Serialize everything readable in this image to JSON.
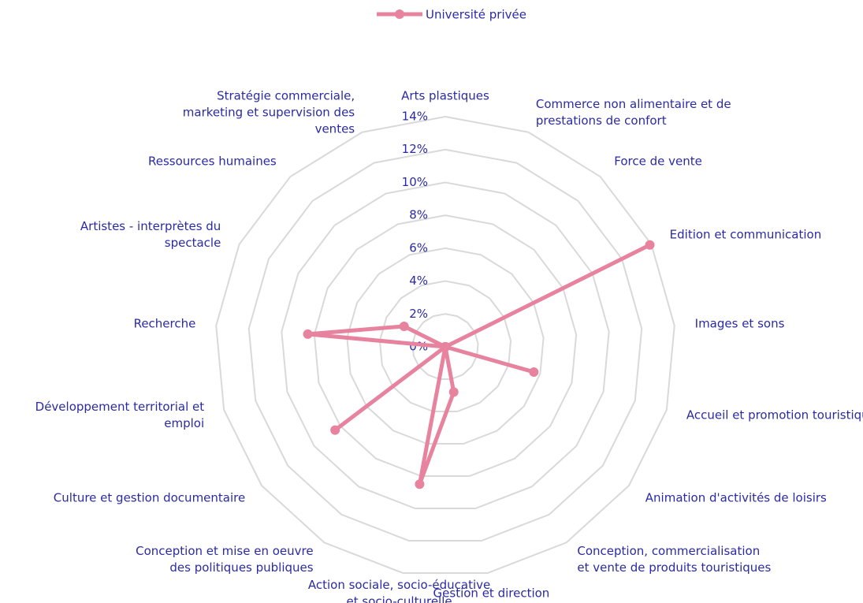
{
  "chart_data": {
    "type": "radar",
    "categories": [
      "Arts plastiques",
      "Commerce non alimentaire et de prestations de confort",
      "Force de vente",
      "Edition et communication",
      "Images et sons",
      "Accueil et promotion touristique",
      "Animation d'activités de loisirs",
      "Conception, commercialisation et vente de produits touristiques",
      "Gestion et direction",
      "Action sociale, socio-éducative et socio-culturelle",
      "Conception et mise en oeuvre des politiques publiques",
      "Culture et gestion documentaire",
      "Développement territorial et emploi",
      "Recherche",
      "Artistes - interprètes du spectacle",
      "Ressources humaines",
      "Stratégie commerciale, marketing et supervision des ventes"
    ],
    "series": [
      {
        "name": "Université privée",
        "color": "#e8839f",
        "values": [
          0,
          0,
          0,
          13.9,
          0,
          5.6,
          0,
          0,
          2.8,
          8.5,
          0,
          8.4,
          0,
          8.4,
          2.8,
          0,
          0
        ]
      }
    ],
    "ylim": [
      0,
      14
    ],
    "yticks": [
      {
        "value": 0,
        "label": "0%"
      },
      {
        "value": 2,
        "label": "2%"
      },
      {
        "value": 4,
        "label": "4%"
      },
      {
        "value": 6,
        "label": "6%"
      },
      {
        "value": 8,
        "label": "8%"
      },
      {
        "value": 10,
        "label": "10%"
      },
      {
        "value": 12,
        "label": "12%"
      },
      {
        "value": 14,
        "label": "14%"
      }
    ],
    "grid": true,
    "legend": "top"
  }
}
